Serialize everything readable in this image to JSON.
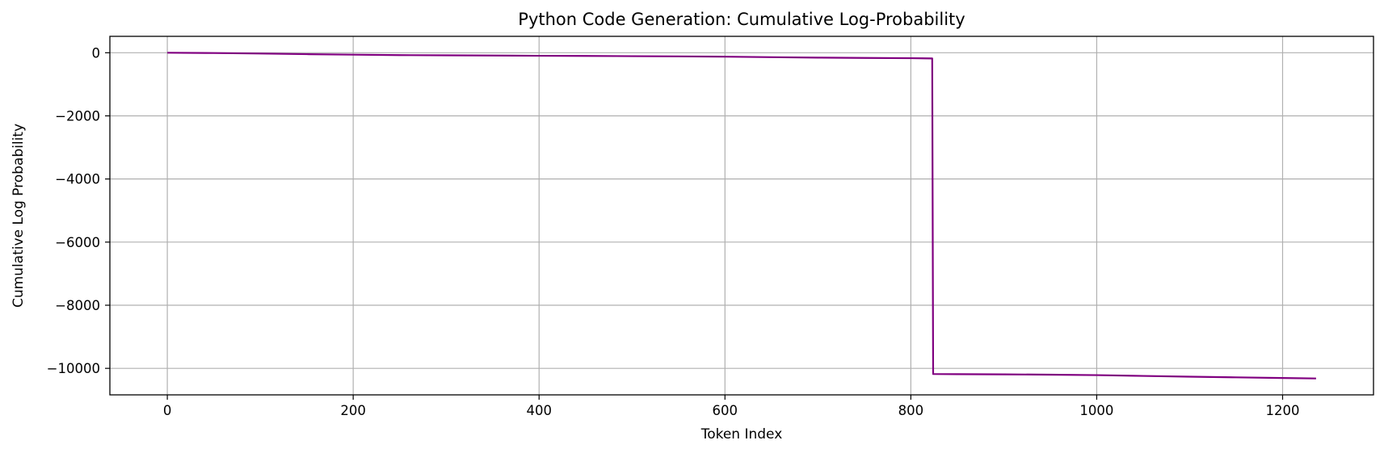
{
  "chart_data": {
    "type": "line",
    "title": "Python Code Generation: Cumulative Log-Probability",
    "xlabel": "Token Index",
    "ylabel": "Cumulative Log Probability",
    "xlim": [
      -61.8,
      1297.8
    ],
    "ylim": [
      -10840,
      520
    ],
    "xticks": [
      0,
      200,
      400,
      600,
      800,
      1000,
      1200
    ],
    "yticks": [
      0,
      -2000,
      -4000,
      -6000,
      -8000,
      -10000
    ],
    "xtick_labels": [
      "0",
      "200",
      "400",
      "600",
      "800",
      "1000",
      "1200"
    ],
    "ytick_labels": [
      "0",
      "−2000",
      "−4000",
      "−6000",
      "−8000",
      "−10000"
    ],
    "grid": true,
    "series": [
      {
        "color": "#800080",
        "x": [
          0,
          50,
          100,
          150,
          200,
          250,
          300,
          350,
          400,
          450,
          500,
          550,
          600,
          650,
          700,
          750,
          800,
          823,
          824,
          850,
          900,
          950,
          1000,
          1050,
          1100,
          1150,
          1200,
          1236
        ],
        "y": [
          0,
          -10,
          -25,
          -45,
          -60,
          -75,
          -82,
          -88,
          -95,
          -100,
          -108,
          -115,
          -125,
          -140,
          -155,
          -165,
          -172,
          -180,
          -10180,
          -10185,
          -10190,
          -10200,
          -10215,
          -10240,
          -10265,
          -10285,
          -10305,
          -10320
        ]
      }
    ]
  }
}
